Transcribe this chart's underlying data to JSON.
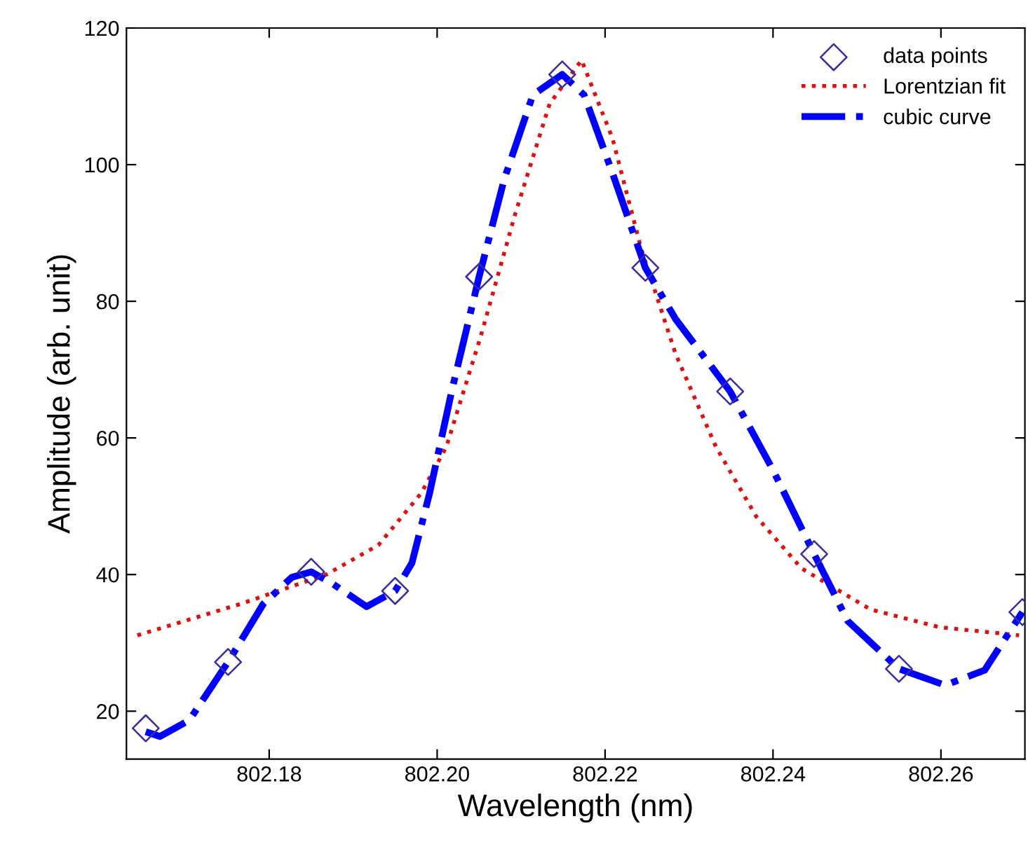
{
  "chart_data": {
    "type": "line",
    "xlabel": "Wavelength (nm)",
    "ylabel": "Amplitude (arb. unit)",
    "xlim": [
      802.163,
      802.27
    ],
    "xticks": [
      {
        "value": 802.18,
        "label": "802.18"
      },
      {
        "value": 802.2,
        "label": "802.20"
      },
      {
        "value": 802.22,
        "label": "802.22"
      },
      {
        "value": 802.24,
        "label": "802.24"
      },
      {
        "value": 802.26,
        "label": "802.26"
      }
    ],
    "ylim": [
      13,
      120
    ],
    "yticks": [
      20,
      40,
      60,
      80,
      100,
      120
    ],
    "grid": false,
    "legend": "top right",
    "series": [
      {
        "name": "data points",
        "type": "scatter",
        "marker": "diamond",
        "color": "#3a2ca0",
        "x": [
          802.1653,
          802.1751,
          802.185,
          802.195,
          802.205,
          802.2149,
          802.2248,
          802.2349,
          802.2449,
          802.255,
          802.2697
        ],
        "values": [
          17.5,
          27.2,
          40.4,
          37.6,
          83.6,
          113.2,
          84.9,
          66.8,
          43.0,
          26.2,
          34.5
        ]
      },
      {
        "name": "Lorentzian fit",
        "line_style": "dotted",
        "color": "#e01010",
        "x": [
          802.1643,
          802.1766,
          802.1868,
          802.193,
          802.1981,
          802.2011,
          802.2052,
          802.2093,
          802.2134,
          802.2172,
          802.2209,
          802.2243,
          802.2284,
          802.2332,
          802.238,
          802.2434,
          802.2516,
          802.2598,
          802.2693
        ],
        "values": [
          31.1,
          35.7,
          40.0,
          44.3,
          51.9,
          58.7,
          74.9,
          92.8,
          108.9,
          115.3,
          103.8,
          87.7,
          72.3,
          58.7,
          48.5,
          40.9,
          34.9,
          32.3,
          31.1
        ]
      },
      {
        "name": "cubic curve",
        "line_style": "dashdot",
        "color": "#0000ff",
        "x": [
          802.1653,
          802.167,
          802.1705,
          802.1751,
          802.1793,
          802.1827,
          802.185,
          802.1875,
          802.1916,
          802.195,
          802.197,
          802.1991,
          802.2018,
          802.205,
          802.208,
          802.2114,
          802.2149,
          802.2175,
          802.2209,
          802.2248,
          802.2284,
          802.2349,
          802.24,
          802.2449,
          802.2489,
          802.255,
          802.2605,
          802.2652,
          802.2697
        ],
        "values": [
          17.0,
          16.3,
          18.7,
          27.2,
          35.7,
          39.6,
          40.4,
          38.7,
          35.3,
          37.6,
          41.7,
          51.9,
          67.2,
          83.6,
          97.9,
          110.2,
          113.2,
          110.2,
          98.7,
          84.9,
          77.4,
          66.8,
          55.3,
          43.0,
          33.2,
          26.2,
          23.8,
          26.0,
          34.5
        ]
      }
    ]
  }
}
